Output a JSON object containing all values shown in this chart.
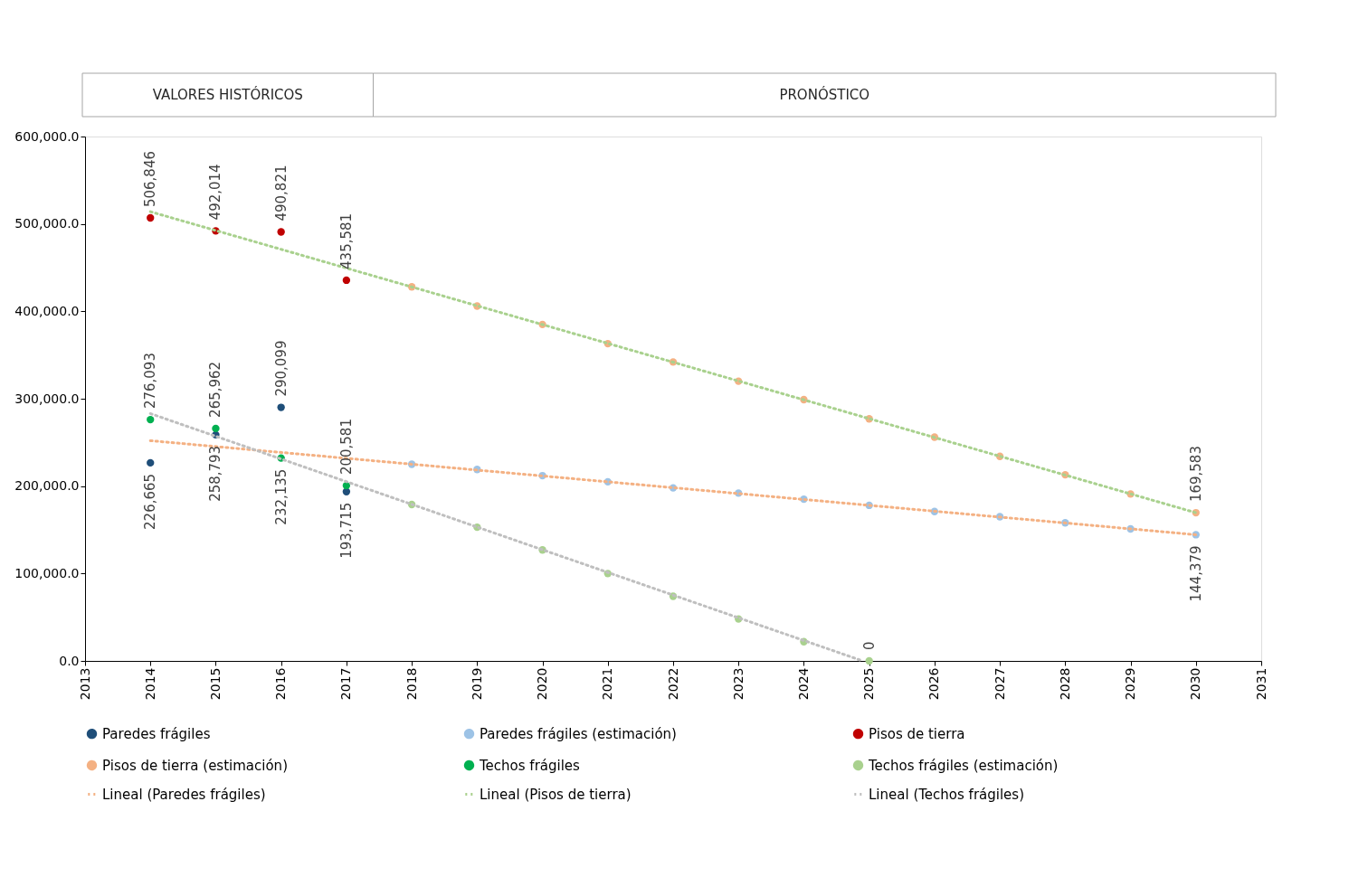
{
  "chart_data": {
    "type": "scatter",
    "annotations": [
      "VALORES HISTÓRICOS",
      "PRONÓSTICO"
    ],
    "xlim": [
      2013,
      2031
    ],
    "xticks": [
      2013,
      2014,
      2015,
      2016,
      2017,
      2018,
      2019,
      2020,
      2021,
      2022,
      2023,
      2024,
      2025,
      2026,
      2027,
      2028,
      2029,
      2030,
      2031
    ],
    "ylim": [
      0,
      600000
    ],
    "yticks": [
      {
        "value": 0,
        "label": "0.0"
      },
      {
        "value": 100000,
        "label": "100,000.0"
      },
      {
        "value": 200000,
        "label": "200,000.0"
      },
      {
        "value": 300000,
        "label": "300,000.0"
      },
      {
        "value": 400000,
        "label": "400,000.0"
      },
      {
        "value": 500000,
        "label": "500,000.0"
      },
      {
        "value": 600000,
        "label": "600,000.0"
      }
    ],
    "grid": false,
    "legend": "bottom",
    "series": [
      {
        "name": "Paredes frágiles",
        "marker": "circle",
        "color": "#1f4e79",
        "x": [
          2014,
          2015,
          2016,
          2017
        ],
        "values": [
          226665,
          258793,
          290099,
          193715
        ],
        "value_labels": [
          "226,665",
          "258,793",
          "290,099",
          "193,715"
        ]
      },
      {
        "name": "Paredes frágiles (estimación)",
        "marker": "circle",
        "color": "#9dc3e6",
        "x": [
          2018,
          2019,
          2020,
          2021,
          2022,
          2023,
          2024,
          2025,
          2026,
          2027,
          2028,
          2029,
          2030
        ],
        "values": [
          225000,
          219000,
          212000,
          205000,
          198000,
          192000,
          185000,
          178000,
          171000,
          165000,
          158000,
          151000,
          144379
        ],
        "value_labels": [
          null,
          null,
          null,
          null,
          null,
          null,
          null,
          null,
          null,
          null,
          null,
          null,
          "144,379"
        ]
      },
      {
        "name": "Pisos de tierra",
        "marker": "circle",
        "color": "#c00000",
        "x": [
          2014,
          2015,
          2016,
          2017
        ],
        "values": [
          506846,
          492014,
          490821,
          435581
        ],
        "value_labels": [
          "506,846",
          "492,014",
          "490,821",
          "435,581"
        ]
      },
      {
        "name": "Pisos de tierra (estimación)",
        "marker": "circle",
        "color": "#f4b183",
        "x": [
          2018,
          2019,
          2020,
          2021,
          2022,
          2023,
          2024,
          2025,
          2026,
          2027,
          2028,
          2029,
          2030
        ],
        "values": [
          428000,
          406000,
          385000,
          363000,
          342000,
          320000,
          299000,
          277000,
          256000,
          234000,
          213000,
          191000,
          169583
        ],
        "value_labels": [
          null,
          null,
          null,
          null,
          null,
          null,
          null,
          null,
          null,
          null,
          null,
          null,
          "169,583"
        ]
      },
      {
        "name": "Techos frágiles",
        "marker": "circle",
        "color": "#00b050",
        "x": [
          2014,
          2015,
          2016,
          2017
        ],
        "values": [
          276093,
          265962,
          232135,
          200581
        ],
        "value_labels": [
          "276,093",
          "265,962",
          "232,135",
          "200,581"
        ]
      },
      {
        "name": "Techos frágiles (estimación)",
        "marker": "circle",
        "color": "#a9d18e",
        "x": [
          2018,
          2019,
          2020,
          2021,
          2022,
          2023,
          2024,
          2025
        ],
        "values": [
          179000,
          153000,
          127000,
          100000,
          74000,
          48000,
          22000,
          0
        ],
        "value_labels": [
          null,
          null,
          null,
          null,
          null,
          null,
          null,
          "0"
        ]
      },
      {
        "name": "Lineal (Paredes frágiles)",
        "type": "line",
        "line_style": "dotted",
        "color": "#f4b183",
        "x": [
          2014,
          2030
        ],
        "values": [
          252000,
          144379
        ]
      },
      {
        "name": "Lineal (Pisos de tierra)",
        "type": "line",
        "line_style": "dotted",
        "color": "#a9d18e",
        "x": [
          2014,
          2030
        ],
        "values": [
          514000,
          169583
        ]
      },
      {
        "name": "Lineal (Techos frágiles)",
        "type": "line",
        "line_style": "dotted",
        "color": "#bfbfbf",
        "x": [
          2014,
          2024.9
        ],
        "values": [
          283000,
          0
        ]
      }
    ]
  }
}
